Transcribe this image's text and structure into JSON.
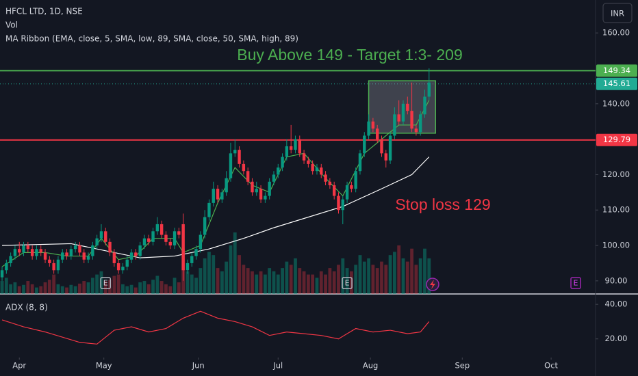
{
  "chart_data": {
    "type": "candlestick",
    "title": "HFCL LTD, 1D, NSE",
    "volume_label": "Vol",
    "ribbon_label": "MA Ribbon (EMA, close, 5, SMA, low, 89, SMA, close, 50, SMA, high, 89)",
    "currency": "INR",
    "annotations": [
      {
        "text": "Buy Above 149 - Target 1:3- 209",
        "color": "#4caf50"
      },
      {
        "text": "Stop loss 129",
        "color": "#f23645"
      }
    ],
    "up_color": "#089981",
    "down_color": "#f23645",
    "xlim": [
      -0.48,
      137.6
    ],
    "xticks": [
      {
        "value": 4,
        "label": "Apr"
      },
      {
        "value": 23.6,
        "label": "May"
      },
      {
        "value": 45.5,
        "label": "Jun"
      },
      {
        "value": 64,
        "label": "Jul"
      },
      {
        "value": 85.4,
        "label": "Aug"
      },
      {
        "value": 106.7,
        "label": "Sep"
      },
      {
        "value": 127.3,
        "label": "Oct"
      }
    ],
    "ylim": [
      86.3,
      169.3
    ],
    "yticks": [
      {
        "value": 160,
        "label": "160.00"
      },
      {
        "value": 140,
        "label": "140.00"
      },
      {
        "value": 120,
        "label": "120.00"
      },
      {
        "value": 110,
        "label": "110.00"
      },
      {
        "value": 100,
        "label": "100.00"
      },
      {
        "value": 90,
        "label": "90.00"
      }
    ],
    "open": [
      91,
      93,
      95,
      97,
      99,
      98,
      100,
      99,
      97,
      99,
      98,
      96,
      95,
      93,
      96,
      98,
      97,
      99,
      100,
      98,
      96,
      97,
      100,
      102,
      104,
      101,
      98,
      95,
      93,
      94,
      96,
      98,
      97,
      100,
      102,
      101,
      104,
      106,
      103,
      101,
      100,
      104,
      106,
      93,
      95,
      97,
      99,
      103,
      108,
      112,
      116,
      113,
      115,
      119,
      126,
      127,
      123,
      121,
      118,
      115,
      116,
      113,
      114,
      118,
      120,
      122,
      125,
      128,
      127,
      130,
      126,
      124,
      123,
      121,
      122,
      120,
      118,
      117,
      114,
      110,
      113,
      117,
      116,
      121,
      126,
      131,
      135,
      133,
      130,
      126,
      124,
      131,
      137,
      135,
      140,
      138,
      133,
      132,
      137,
      142
    ],
    "high": [
      94,
      96,
      98,
      100,
      101,
      101,
      101,
      100,
      100,
      100,
      99,
      97,
      96,
      97,
      99,
      99,
      100,
      101,
      101,
      99,
      98,
      101,
      103,
      106,
      105,
      102,
      99,
      96,
      95,
      97,
      99,
      99,
      101,
      103,
      103,
      105,
      108,
      107,
      104,
      102,
      105,
      105,
      109,
      96,
      98,
      100,
      104,
      110,
      113,
      118,
      117,
      116,
      121,
      129,
      130,
      128,
      124,
      122,
      119,
      118,
      117,
      115,
      119,
      121,
      123,
      126,
      130,
      134,
      131,
      131,
      127,
      125,
      124,
      123,
      123,
      121,
      119,
      118,
      115,
      114,
      118,
      118,
      122,
      127,
      132,
      137,
      136,
      134,
      131,
      127,
      132,
      139,
      141,
      141,
      142,
      146,
      134,
      138,
      144,
      150
    ],
    "low": [
      90,
      92,
      94,
      96,
      97,
      97,
      98,
      96,
      96,
      97,
      95,
      94,
      92,
      92,
      95,
      96,
      96,
      98,
      97,
      95,
      95,
      96,
      99,
      101,
      100,
      97,
      94,
      92,
      92,
      93,
      95,
      96,
      96,
      99,
      100,
      100,
      103,
      102,
      100,
      99,
      99,
      102,
      90,
      92,
      94,
      96,
      98,
      102,
      107,
      111,
      112,
      112,
      114,
      118,
      125,
      122,
      120,
      117,
      114,
      114,
      112,
      112,
      113,
      117,
      119,
      121,
      124,
      126,
      126,
      125,
      123,
      122,
      120,
      120,
      119,
      117,
      116,
      113,
      109,
      106,
      112,
      115,
      115,
      120,
      125,
      130,
      132,
      129,
      125,
      122,
      123,
      130,
      134,
      134,
      137,
      132,
      131,
      131,
      136,
      141
    ],
    "close": [
      93,
      95,
      97,
      99,
      98,
      100,
      99,
      97,
      99,
      98,
      96,
      95,
      93,
      96,
      98,
      97,
      99,
      100,
      98,
      96,
      97,
      100,
      102,
      104,
      101,
      98,
      95,
      93,
      94,
      96,
      98,
      97,
      100,
      102,
      101,
      104,
      106,
      103,
      101,
      100,
      104,
      103,
      93,
      95,
      97,
      99,
      103,
      108,
      112,
      116,
      113,
      115,
      119,
      126,
      127,
      123,
      121,
      118,
      115,
      116,
      113,
      114,
      118,
      120,
      122,
      125,
      128,
      127,
      130,
      126,
      124,
      123,
      121,
      122,
      120,
      118,
      117,
      114,
      110,
      113,
      117,
      116,
      121,
      126,
      131,
      135,
      133,
      130,
      126,
      124,
      131,
      137,
      135,
      140,
      138,
      133,
      132,
      137,
      142,
      146
    ],
    "volume": [
      20,
      25,
      15,
      18,
      12,
      14,
      20,
      15,
      10,
      12,
      18,
      22,
      30,
      15,
      12,
      10,
      14,
      12,
      16,
      20,
      18,
      25,
      30,
      35,
      20,
      22,
      28,
      30,
      15,
      12,
      14,
      10,
      18,
      20,
      15,
      22,
      28,
      20,
      15,
      12,
      25,
      18,
      70,
      35,
      30,
      25,
      40,
      55,
      65,
      60,
      40,
      35,
      50,
      75,
      95,
      60,
      45,
      40,
      35,
      30,
      35,
      30,
      40,
      35,
      30,
      40,
      50,
      45,
      55,
      40,
      35,
      30,
      30,
      25,
      35,
      30,
      40,
      35,
      45,
      55,
      40,
      35,
      45,
      60,
      50,
      55,
      45,
      40,
      50,
      45,
      60,
      65,
      75,
      55,
      50,
      70,
      45,
      55,
      70,
      55
    ],
    "moving_averages": [
      {
        "color": "#ffffff",
        "x": [
          0,
          16,
          32,
          40,
          48,
          56,
          63,
          79,
          88,
          95,
          99
        ],
        "values": [
          100,
          100.5,
          96.5,
          97,
          99,
          102,
          105,
          111,
          116,
          120,
          125
        ]
      },
      {
        "color": "#4caf50",
        "x": [
          0,
          5,
          10,
          15,
          20,
          23,
          27,
          31,
          35,
          40,
          42,
          46,
          50,
          54,
          58,
          62,
          66,
          70,
          75,
          79,
          84,
          88,
          92,
          96,
          99
        ],
        "values": [
          94,
          98,
          98,
          97,
          97,
          102,
          96,
          97,
          102,
          102,
          98,
          100,
          112,
          122,
          117,
          115,
          125,
          126,
          119,
          114,
          126,
          130,
          134,
          134,
          141
        ]
      }
    ],
    "levels": [
      {
        "value": 149.34,
        "color": "#4caf50",
        "dash": false
      },
      {
        "value": 145.61,
        "color": "#22ab94",
        "dash": true
      },
      {
        "value": 129.79,
        "color": "#f23645",
        "dash": false
      }
    ],
    "box": {
      "x": [
        85,
        100.5
      ],
      "y": [
        146.5,
        131.7
      ],
      "color": "#4caf50"
    },
    "earnings": [
      24,
      80,
      133
    ],
    "adx": {
      "label": "ADX (8, 8)",
      "color": "#f23645",
      "ylim": [
        10,
        46
      ],
      "yticks": [
        {
          "value": 40,
          "label": "40.00"
        },
        {
          "value": 20,
          "label": "20.00"
        }
      ],
      "x": [
        0,
        5,
        10,
        18,
        22,
        26,
        30,
        34,
        38,
        42,
        46,
        50,
        54,
        58,
        62,
        66,
        70,
        74,
        78,
        82,
        86,
        90,
        94,
        97,
        99
      ],
      "values": [
        31,
        27,
        24,
        18,
        17,
        25,
        27,
        24,
        26,
        32,
        36,
        32,
        30,
        27,
        22,
        24,
        23,
        22,
        20,
        26,
        24,
        25,
        23,
        24,
        30
      ]
    }
  }
}
